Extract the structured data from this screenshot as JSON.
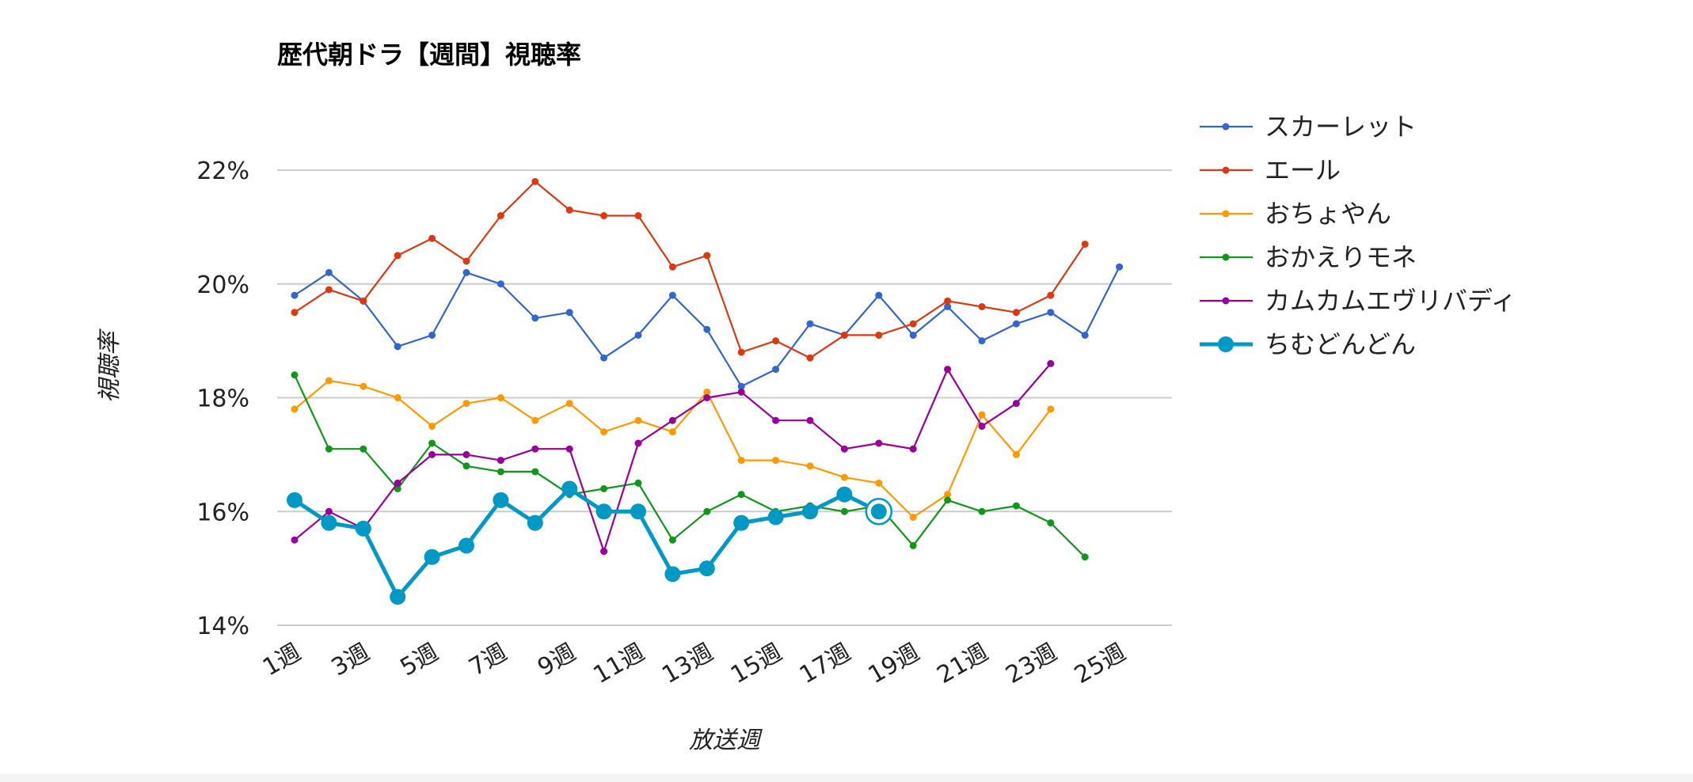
{
  "chart_data": {
    "type": "line",
    "title": "歴代朝ドラ【週間】視聴率",
    "xlabel": "放送週",
    "ylabel": "視聴率",
    "categories": [
      "1週",
      "2週",
      "3週",
      "4週",
      "5週",
      "6週",
      "7週",
      "8週",
      "9週",
      "10週",
      "11週",
      "12週",
      "13週",
      "14週",
      "15週",
      "16週",
      "17週",
      "18週",
      "19週",
      "20週",
      "21週",
      "22週",
      "23週",
      "24週",
      "25週"
    ],
    "tick_labels": [
      "1週",
      "3週",
      "5週",
      "7週",
      "9週",
      "11週",
      "13週",
      "15週",
      "17週",
      "19週",
      "21週",
      "23週",
      "25週"
    ],
    "y_ticks": [
      14,
      16,
      18,
      20,
      22
    ],
    "y_tick_labels": [
      "14%",
      "16%",
      "18%",
      "20%",
      "22%"
    ],
    "ylim": [
      14,
      22
    ],
    "grid": "horizontal",
    "legend_position": "right",
    "series": [
      {
        "name": "スカーレット",
        "color": "#3366cc",
        "emphasis": false,
        "values": [
          19.8,
          20.2,
          19.7,
          18.9,
          19.1,
          20.2,
          20.0,
          19.4,
          19.5,
          18.7,
          19.1,
          19.8,
          19.2,
          18.2,
          18.5,
          19.3,
          19.1,
          19.8,
          19.1,
          19.6,
          19.0,
          19.3,
          19.5,
          19.1,
          20.3
        ]
      },
      {
        "name": "エール",
        "color": "#dc3912",
        "emphasis": false,
        "values": [
          19.5,
          19.9,
          19.7,
          20.5,
          20.8,
          20.4,
          21.2,
          21.8,
          21.3,
          21.2,
          21.2,
          20.3,
          20.5,
          18.8,
          19.0,
          18.7,
          19.1,
          19.1,
          19.3,
          19.7,
          19.6,
          19.5,
          19.8,
          20.7,
          null
        ]
      },
      {
        "name": "おちょやん",
        "color": "#ff9900",
        "emphasis": false,
        "values": [
          17.8,
          18.3,
          18.2,
          18.0,
          17.5,
          17.9,
          18.0,
          17.6,
          17.9,
          17.4,
          17.6,
          17.4,
          18.1,
          16.9,
          16.9,
          16.8,
          16.6,
          16.5,
          15.9,
          16.3,
          17.7,
          17.0,
          17.8,
          null,
          null
        ]
      },
      {
        "name": "おかえりモネ",
        "color": "#109618",
        "emphasis": false,
        "values": [
          18.4,
          17.1,
          17.1,
          16.4,
          17.2,
          16.8,
          16.7,
          16.7,
          16.3,
          16.4,
          16.5,
          15.5,
          16.0,
          16.3,
          16.0,
          16.1,
          16.0,
          16.1,
          15.4,
          16.2,
          16.0,
          16.1,
          15.8,
          15.2,
          null
        ]
      },
      {
        "name": "カムカムエヴリバディ",
        "color": "#990099",
        "emphasis": false,
        "values": [
          15.5,
          16.0,
          15.7,
          16.5,
          17.0,
          17.0,
          16.9,
          17.1,
          17.1,
          15.3,
          17.2,
          17.6,
          18.0,
          18.1,
          17.6,
          17.6,
          17.1,
          17.2,
          17.1,
          18.5,
          17.5,
          17.9,
          18.6,
          null,
          null
        ]
      },
      {
        "name": "ちむどんどん",
        "color": "#0099c6",
        "emphasis": true,
        "values": [
          16.2,
          15.8,
          15.7,
          14.5,
          15.2,
          15.4,
          16.2,
          15.8,
          16.4,
          16.0,
          16.0,
          14.9,
          15.0,
          15.8,
          15.9,
          16.0,
          16.3,
          16.0,
          null,
          null,
          null,
          null,
          null,
          null,
          null
        ],
        "highlight_index": 17
      }
    ]
  }
}
